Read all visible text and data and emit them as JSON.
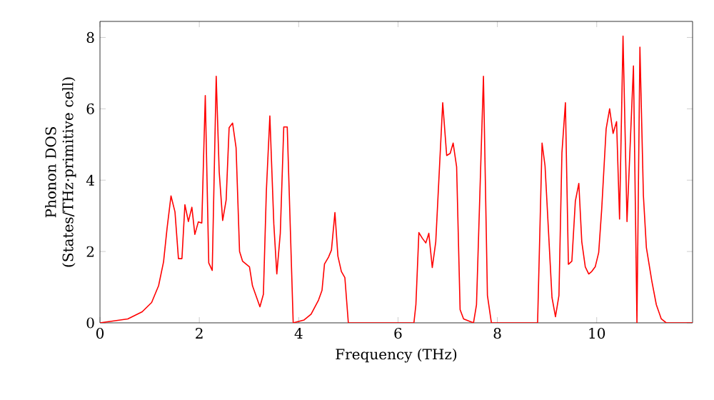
{
  "chart_data": {
    "type": "line",
    "xlabel": "Frequency (THz)",
    "ylabel": "Phonon DOS (States/THz·primitive cell)",
    "xlim": [
      0,
      11.93
    ],
    "ylim": [
      0,
      8.45
    ],
    "xticks": [
      0,
      2,
      4,
      6,
      8,
      10
    ],
    "yticks": [
      0,
      2,
      4,
      6,
      8
    ],
    "grid": false,
    "marker": "none",
    "line_style": "solid",
    "series": [
      {
        "color": "#ff0000",
        "x": [
          0,
          0.56,
          0.85,
          1.04,
          1.18,
          1.28,
          1.35,
          1.43,
          1.51,
          1.58,
          1.65,
          1.71,
          1.78,
          1.85,
          1.91,
          1.98,
          2.05,
          2.12,
          2.19,
          2.26,
          2.34,
          2.4,
          2.47,
          2.54,
          2.6,
          2.67,
          2.74,
          2.81,
          2.87,
          3.01,
          3.07,
          3.22,
          3.29,
          3.35,
          3.42,
          3.5,
          3.56,
          3.63,
          3.7,
          3.77,
          3.89,
          4.11,
          4.25,
          4.4,
          4.47,
          4.52,
          4.6,
          4.66,
          4.73,
          4.79,
          4.86,
          4.93,
          5.0,
          6.32,
          6.36,
          6.42,
          6.49,
          6.56,
          6.62,
          6.69,
          6.76,
          6.9,
          6.98,
          7.05,
          7.11,
          7.18,
          7.25,
          7.32,
          7.52,
          7.58,
          7.72,
          7.8,
          7.88,
          8.81,
          8.9,
          8.96,
          9.1,
          9.17,
          9.24,
          9.3,
          9.37,
          9.43,
          9.5,
          9.57,
          9.64,
          9.7,
          9.77,
          9.84,
          9.9,
          9.97,
          10.04,
          10.1,
          10.19,
          10.26,
          10.33,
          10.4,
          10.46,
          10.53,
          10.61,
          10.74,
          10.81,
          10.87,
          10.94,
          11.0,
          11.11,
          11.2,
          11.3,
          11.4,
          11.93
        ],
        "values": [
          0,
          0.11,
          0.31,
          0.57,
          1.04,
          1.71,
          2.64,
          3.56,
          3.11,
          1.8,
          1.8,
          3.31,
          2.84,
          3.24,
          2.48,
          2.83,
          2.8,
          6.37,
          1.68,
          1.47,
          6.91,
          4.24,
          2.87,
          3.44,
          5.47,
          5.6,
          4.91,
          2.0,
          1.73,
          1.57,
          1.04,
          0.45,
          0.8,
          3.71,
          5.8,
          2.77,
          1.37,
          2.51,
          5.49,
          5.49,
          0,
          0.08,
          0.24,
          0.64,
          0.91,
          1.65,
          1.84,
          2.04,
          3.09,
          1.87,
          1.44,
          1.27,
          0,
          0,
          0.51,
          2.53,
          2.37,
          2.24,
          2.51,
          1.55,
          2.27,
          6.17,
          4.69,
          4.75,
          5.04,
          4.37,
          0.37,
          0.11,
          0,
          0.51,
          6.91,
          0.77,
          0,
          0,
          5.04,
          4.4,
          0.71,
          0.17,
          0.77,
          4.77,
          6.17,
          1.64,
          1.73,
          3.41,
          3.91,
          2.27,
          1.57,
          1.37,
          1.44,
          1.57,
          1.97,
          3.17,
          5.44,
          6.0,
          5.31,
          5.64,
          2.91,
          8.04,
          2.84,
          7.2,
          0,
          7.73,
          3.57,
          2.11,
          1.17,
          0.51,
          0.11,
          0,
          0
        ]
      }
    ]
  }
}
